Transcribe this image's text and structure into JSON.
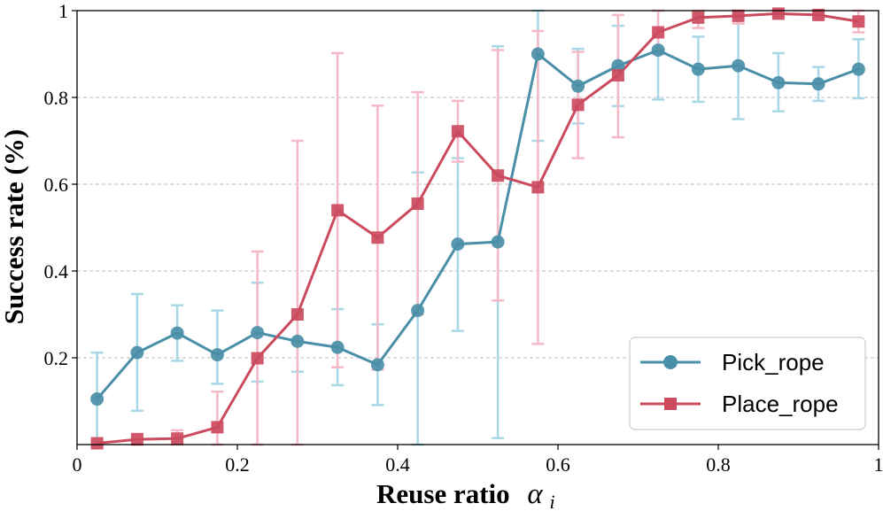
{
  "chart_data": {
    "type": "line",
    "xlabel": "Reuse ratio",
    "xlabel_symbol": "α",
    "xlabel_subscript": "i",
    "ylabel": "Success rate (%)",
    "xlim": [
      0,
      1
    ],
    "ylim": [
      0,
      1
    ],
    "x_ticks": [
      0,
      0.2,
      0.4,
      0.6,
      0.8,
      1
    ],
    "x_tick_labels": [
      "0",
      "0.2",
      "0.4",
      "0.6",
      "0.8",
      "1"
    ],
    "y_ticks": [
      0.2,
      0.4,
      0.6,
      0.8,
      1
    ],
    "y_tick_labels": [
      "0.2",
      "0.4",
      "0.6",
      "0.8",
      "1"
    ],
    "grid": "horizontal dashed",
    "legend_position": "bottom-right",
    "x": [
      0.025,
      0.075,
      0.125,
      0.175,
      0.225,
      0.275,
      0.325,
      0.375,
      0.425,
      0.475,
      0.525,
      0.575,
      0.625,
      0.675,
      0.725,
      0.775,
      0.825,
      0.875,
      0.925,
      0.975
    ],
    "series": [
      {
        "name": "Pick_rope",
        "marker": "circle",
        "color": "#4a8fa8",
        "error_color": "#a8d8e6",
        "values": [
          0.105,
          0.212,
          0.257,
          0.207,
          0.258,
          0.238,
          0.224,
          0.184,
          0.309,
          0.462,
          0.467,
          0.9,
          0.826,
          0.873,
          0.909,
          0.865,
          0.873,
          0.834,
          0.831,
          0.865
        ],
        "err_low": [
          0.0,
          0.078,
          0.193,
          0.14,
          0.145,
          0.168,
          0.137,
          0.091,
          0.0,
          0.262,
          0.015,
          0.7,
          0.74,
          0.78,
          0.795,
          0.79,
          0.75,
          0.768,
          0.792,
          0.798
        ],
        "err_high": [
          0.212,
          0.347,
          0.321,
          0.309,
          0.373,
          0.308,
          0.312,
          0.277,
          0.627,
          0.66,
          0.918,
          1.0,
          0.912,
          0.965,
          1.0,
          0.94,
          0.996,
          0.902,
          0.87,
          0.934
        ]
      },
      {
        "name": "Place_rope",
        "marker": "square",
        "color": "#cc4a5e",
        "error_color": "#f5b8c6",
        "values": [
          0.003,
          0.012,
          0.014,
          0.04,
          0.199,
          0.3,
          0.54,
          0.477,
          0.555,
          0.722,
          0.62,
          0.593,
          0.783,
          0.851,
          0.95,
          0.984,
          0.988,
          0.993,
          0.99,
          0.975
        ],
        "err_low": [
          0.0,
          0.0,
          0.0,
          0.0,
          0.0,
          0.0,
          0.178,
          0.173,
          0.3,
          0.652,
          0.332,
          0.232,
          0.66,
          0.708,
          0.9,
          0.96,
          0.97,
          0.985,
          0.982,
          0.95
        ],
        "err_high": [
          0.008,
          0.025,
          0.033,
          0.122,
          0.445,
          0.7,
          0.902,
          0.781,
          0.812,
          0.792,
          0.909,
          0.953,
          0.905,
          0.99,
          1.0,
          1.0,
          1.0,
          1.0,
          1.0,
          1.0
        ]
      }
    ]
  }
}
